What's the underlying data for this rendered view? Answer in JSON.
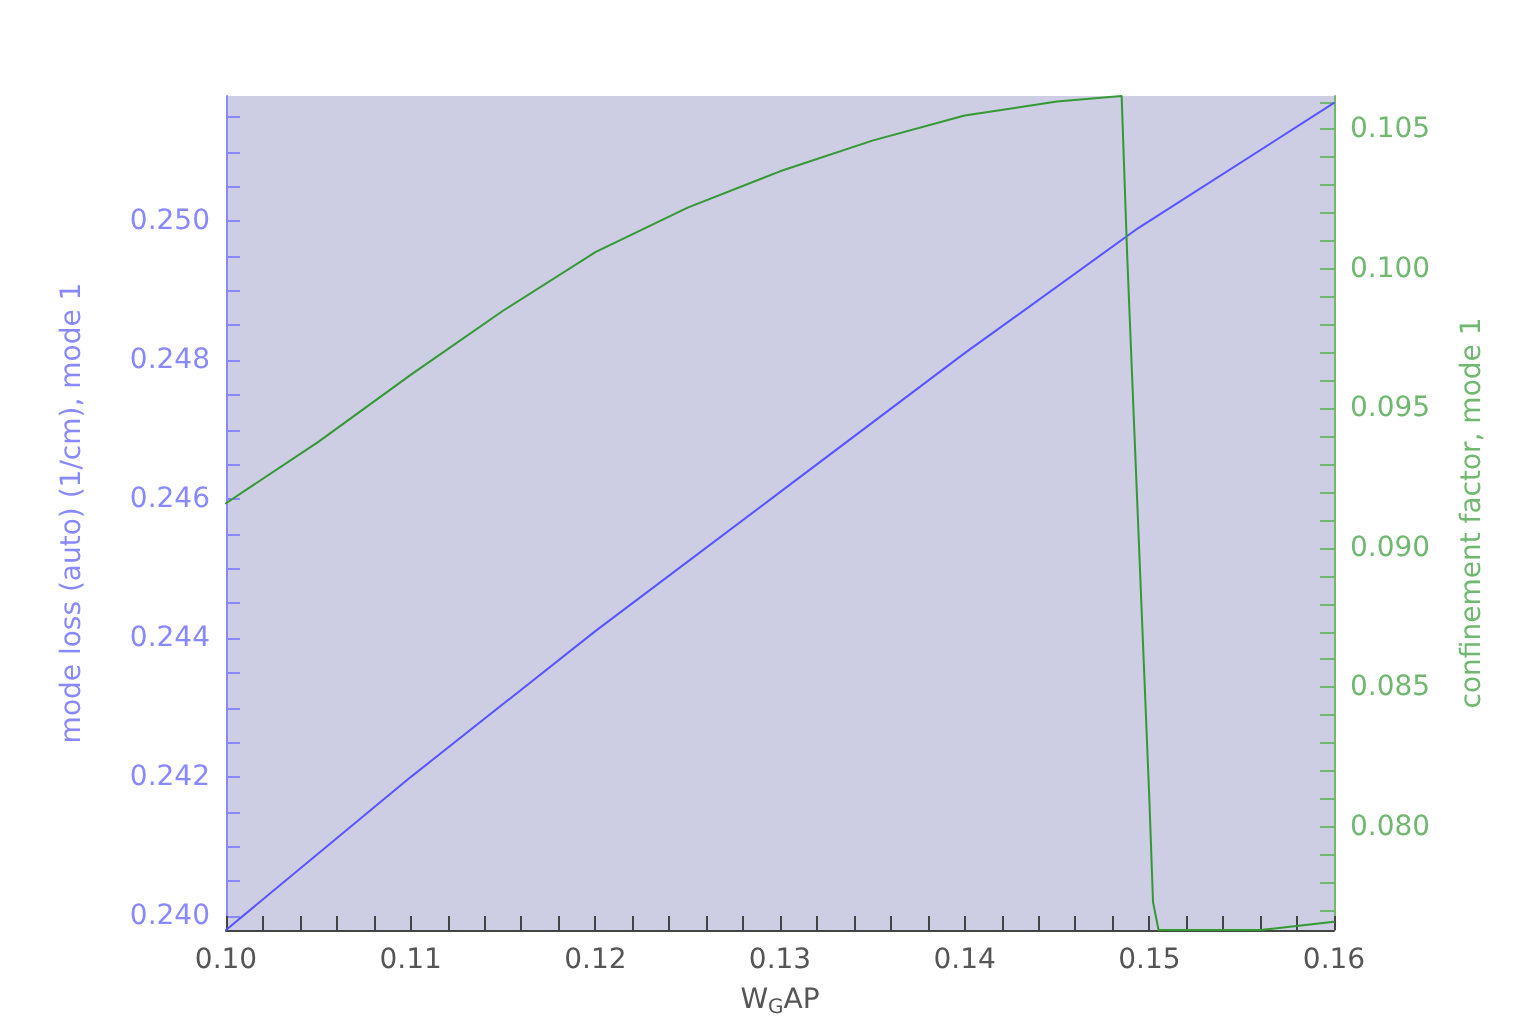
{
  "chart_data": {
    "type": "line",
    "xlabel": "W$_{G}$AP",
    "ylabel": "mode loss (auto) (1/cm), mode 1",
    "y2label": "confinement factor, mode 1",
    "xlim": [
      0.1,
      0.16
    ],
    "ylim": [
      0.2398,
      0.2518
    ],
    "y2lim": [
      0.0763,
      0.1062
    ],
    "xticks": [
      {
        "value": 0.1,
        "label": "0.10"
      },
      {
        "value": 0.102,
        "label": null
      },
      {
        "value": 0.104,
        "label": null
      },
      {
        "value": 0.106,
        "label": null
      },
      {
        "value": 0.108,
        "label": null
      },
      {
        "value": 0.11,
        "label": "0.11"
      },
      {
        "value": 0.112,
        "label": null
      },
      {
        "value": 0.114,
        "label": null
      },
      {
        "value": 0.116,
        "label": null
      },
      {
        "value": 0.118,
        "label": null
      },
      {
        "value": 0.12,
        "label": "0.12"
      },
      {
        "value": 0.122,
        "label": null
      },
      {
        "value": 0.124,
        "label": null
      },
      {
        "value": 0.126,
        "label": null
      },
      {
        "value": 0.128,
        "label": null
      },
      {
        "value": 0.13,
        "label": "0.13"
      },
      {
        "value": 0.132,
        "label": null
      },
      {
        "value": 0.134,
        "label": null
      },
      {
        "value": 0.136,
        "label": null
      },
      {
        "value": 0.138,
        "label": null
      },
      {
        "value": 0.14,
        "label": "0.14"
      },
      {
        "value": 0.142,
        "label": null
      },
      {
        "value": 0.144,
        "label": null
      },
      {
        "value": 0.146,
        "label": null
      },
      {
        "value": 0.148,
        "label": null
      },
      {
        "value": 0.15,
        "label": "0.15"
      },
      {
        "value": 0.152,
        "label": null
      },
      {
        "value": 0.154,
        "label": null
      },
      {
        "value": 0.156,
        "label": null
      },
      {
        "value": 0.158,
        "label": null
      },
      {
        "value": 0.16,
        "label": "0.16"
      }
    ],
    "yticks": [
      {
        "value": 0.24,
        "label": "0.240"
      },
      {
        "value": 0.2405,
        "label": null
      },
      {
        "value": 0.241,
        "label": null
      },
      {
        "value": 0.2415,
        "label": null
      },
      {
        "value": 0.242,
        "label": "0.242"
      },
      {
        "value": 0.2425,
        "label": null
      },
      {
        "value": 0.243,
        "label": null
      },
      {
        "value": 0.2435,
        "label": null
      },
      {
        "value": 0.244,
        "label": "0.244"
      },
      {
        "value": 0.2445,
        "label": null
      },
      {
        "value": 0.245,
        "label": null
      },
      {
        "value": 0.2455,
        "label": null
      },
      {
        "value": 0.246,
        "label": "0.246"
      },
      {
        "value": 0.2465,
        "label": null
      },
      {
        "value": 0.247,
        "label": null
      },
      {
        "value": 0.2475,
        "label": null
      },
      {
        "value": 0.248,
        "label": "0.248"
      },
      {
        "value": 0.2485,
        "label": null
      },
      {
        "value": 0.249,
        "label": null
      },
      {
        "value": 0.2495,
        "label": null
      },
      {
        "value": 0.25,
        "label": "0.250"
      },
      {
        "value": 0.2505,
        "label": null
      },
      {
        "value": 0.251,
        "label": null
      },
      {
        "value": 0.2515,
        "label": null
      }
    ],
    "y2ticks": [
      {
        "value": 0.077,
        "label": null
      },
      {
        "value": 0.078,
        "label": null
      },
      {
        "value": 0.079,
        "label": null
      },
      {
        "value": 0.08,
        "label": "0.080"
      },
      {
        "value": 0.081,
        "label": null
      },
      {
        "value": 0.082,
        "label": null
      },
      {
        "value": 0.083,
        "label": null
      },
      {
        "value": 0.084,
        "label": null
      },
      {
        "value": 0.085,
        "label": "0.085"
      },
      {
        "value": 0.086,
        "label": null
      },
      {
        "value": 0.087,
        "label": null
      },
      {
        "value": 0.088,
        "label": null
      },
      {
        "value": 0.089,
        "label": null
      },
      {
        "value": 0.09,
        "label": "0.090"
      },
      {
        "value": 0.091,
        "label": null
      },
      {
        "value": 0.092,
        "label": null
      },
      {
        "value": 0.093,
        "label": null
      },
      {
        "value": 0.094,
        "label": null
      },
      {
        "value": 0.095,
        "label": "0.095"
      },
      {
        "value": 0.096,
        "label": null
      },
      {
        "value": 0.097,
        "label": null
      },
      {
        "value": 0.098,
        "label": null
      },
      {
        "value": 0.099,
        "label": null
      },
      {
        "value": 0.1,
        "label": "0.100"
      },
      {
        "value": 0.101,
        "label": null
      },
      {
        "value": 0.102,
        "label": null
      },
      {
        "value": 0.103,
        "label": null
      },
      {
        "value": 0.104,
        "label": null
      },
      {
        "value": 0.105,
        "label": "0.105"
      },
      {
        "value": 0.106,
        "label": null
      }
    ],
    "grid": false,
    "marker": "none",
    "line_style": "solid",
    "series": [
      {
        "color": "#5555ff",
        "x": [
          0.1,
          0.11,
          0.12,
          0.13,
          0.14,
          0.1494,
          0.16
        ],
        "values": [
          0.2398,
          0.242,
          0.2441,
          0.2461,
          0.2481,
          0.2499,
          0.2517
        ]
      },
      {
        "color": "#339933",
        "axis": "y2",
        "x": [
          0.1,
          0.105,
          0.11,
          0.115,
          0.12,
          0.125,
          0.13,
          0.135,
          0.14,
          0.145,
          0.1485,
          0.1488,
          0.15,
          0.1502,
          0.1505,
          0.153,
          0.156,
          0.16
        ],
        "values": [
          0.0916,
          0.0938,
          0.0962,
          0.0985,
          0.1006,
          0.1022,
          0.1035,
          0.1046,
          0.1055,
          0.106,
          0.1062,
          0.1005,
          0.081,
          0.0773,
          0.0763,
          0.0763,
          0.0763,
          0.0766
        ]
      }
    ]
  }
}
